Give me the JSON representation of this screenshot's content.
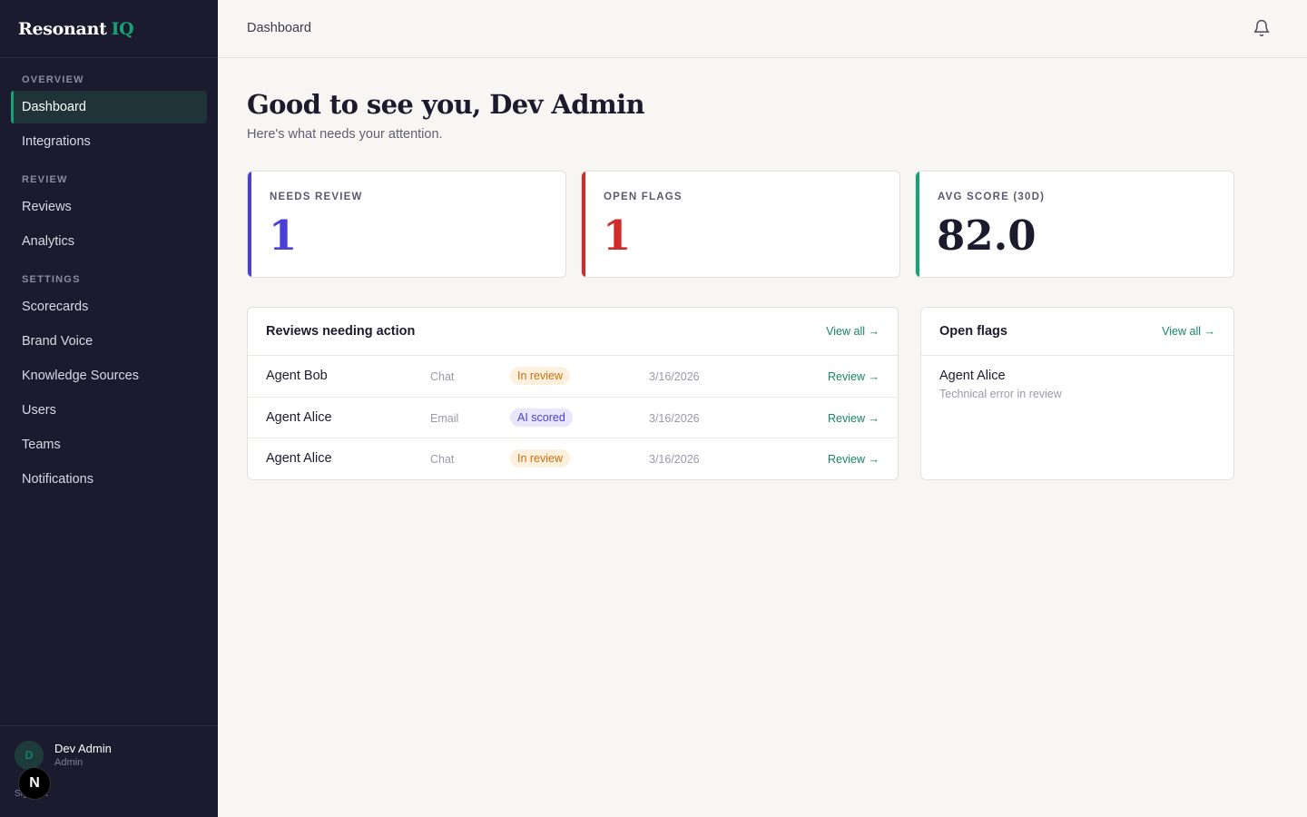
{
  "brand": {
    "name": "Resonant",
    "accent": "IQ",
    "accent_color": "#17a274"
  },
  "sidebar": {
    "sections": [
      {
        "label": "OVERVIEW",
        "items": [
          {
            "label": "Dashboard",
            "active": true
          },
          {
            "label": "Integrations"
          }
        ]
      },
      {
        "label": "REVIEW",
        "items": [
          {
            "label": "Reviews"
          },
          {
            "label": "Analytics"
          }
        ]
      },
      {
        "label": "SETTINGS",
        "items": [
          {
            "label": "Scorecards"
          },
          {
            "label": "Brand Voice"
          },
          {
            "label": "Knowledge Sources"
          },
          {
            "label": "Users"
          },
          {
            "label": "Teams"
          },
          {
            "label": "Notifications"
          }
        ]
      }
    ],
    "user": {
      "initial": "D",
      "name": "Dev Admin",
      "role": "Admin",
      "sign_out": "Sign out"
    },
    "dev_badge": "N"
  },
  "topbar": {
    "title": "Dashboard",
    "bell_icon": "bell-icon"
  },
  "main": {
    "greeting": "Good to see you, Dev Admin",
    "subtitle": "Here's what needs your attention.",
    "stats": [
      {
        "label": "NEEDS REVIEW",
        "value": "1",
        "color": "#4a3fd6"
      },
      {
        "label": "OPEN FLAGS",
        "value": "1",
        "color": "#d12a2a"
      },
      {
        "label": "AVG SCORE (30D)",
        "value": "82.0",
        "color": "#17a274"
      }
    ],
    "reviews": {
      "title": "Reviews needing action",
      "view_all": "View all →",
      "rows": [
        {
          "agent": "Agent Bob",
          "channel": "Chat",
          "status": "In review",
          "date": "3/16/2026",
          "action": "Review →"
        },
        {
          "agent": "Agent Alice",
          "channel": "Email",
          "status": "AI scored",
          "date": "3/16/2026",
          "action": "Review →"
        },
        {
          "agent": "Agent Alice",
          "channel": "Chat",
          "status": "In review",
          "date": "3/16/2026",
          "action": "Review →"
        }
      ]
    },
    "flags": {
      "title": "Open flags",
      "view_all": "View all →",
      "items": [
        {
          "agent": "Agent Alice",
          "description": "Technical error in review"
        }
      ]
    }
  }
}
